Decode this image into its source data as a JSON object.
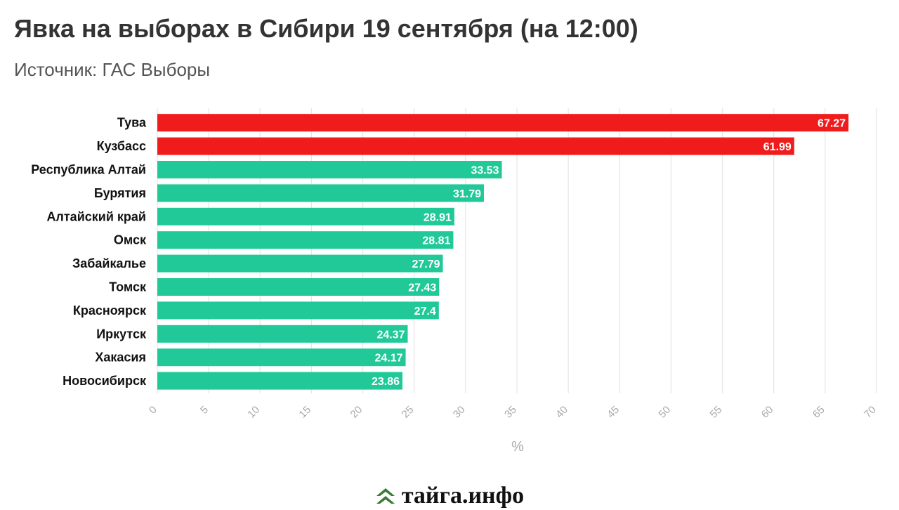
{
  "chart_data": {
    "type": "bar",
    "orientation": "horizontal",
    "title": "Явка на выборах в Сибири 19 сентября (на 12:00)",
    "subtitle": "Источник: ГАС Выборы",
    "xlabel": "%",
    "xlim": [
      0,
      70
    ],
    "xticks": [
      0,
      5,
      10,
      15,
      20,
      25,
      30,
      35,
      40,
      45,
      50,
      55,
      60,
      65,
      70
    ],
    "grid": true,
    "categories": [
      "Тува",
      "Кузбасс",
      "Республика Алтай",
      "Бурятия",
      "Алтайский край",
      "Омск",
      "Забайкалье",
      "Томск",
      "Красноярск",
      "Иркутск",
      "Хакасия",
      "Новосибирск"
    ],
    "values": [
      67.27,
      61.99,
      33.53,
      31.79,
      28.91,
      28.81,
      27.79,
      27.43,
      27.4,
      24.37,
      24.17,
      23.86
    ],
    "value_labels": [
      "67.27",
      "61.99",
      "33.53",
      "31.79",
      "28.91",
      "28.81",
      "27.79",
      "27.43",
      "27.4",
      "24.37",
      "24.17",
      "23.86"
    ],
    "colors": [
      "#f01c1c",
      "#f01c1c",
      "#20c997",
      "#20c997",
      "#20c997",
      "#20c997",
      "#20c997",
      "#20c997",
      "#20c997",
      "#20c997",
      "#20c997",
      "#20c997"
    ]
  },
  "logo": {
    "text": "тайга.инфо",
    "icon": "tree-chevron-icon",
    "color": "#3a7a3a"
  }
}
